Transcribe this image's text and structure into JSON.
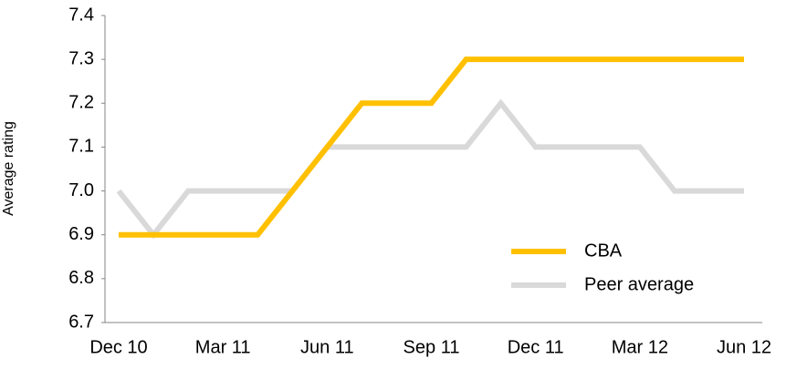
{
  "chart_data": {
    "type": "line",
    "ylabel": "Average rating",
    "categories": [
      "Dec 10",
      null,
      null,
      "Mar 11",
      null,
      null,
      "Jun 11",
      null,
      null,
      "Sep 11",
      null,
      null,
      "Dec 11",
      null,
      null,
      "Mar 12",
      null,
      null,
      "Jun 12"
    ],
    "series": [
      {
        "name": "Peer average",
        "color": "#d9d9d9",
        "values": [
          7.0,
          6.9,
          7.0,
          7.0,
          7.0,
          7.0,
          7.1,
          7.1,
          7.1,
          7.1,
          7.1,
          7.2,
          7.1,
          7.1,
          7.1,
          7.1,
          7.0,
          7.0,
          7.0
        ]
      },
      {
        "name": "CBA",
        "color": "#ffc000",
        "values": [
          6.9,
          6.9,
          6.9,
          6.9,
          6.9,
          7.0,
          7.1,
          7.2,
          7.2,
          7.2,
          7.3,
          7.3,
          7.3,
          7.3,
          7.3,
          7.3,
          7.3,
          7.3,
          7.3
        ]
      }
    ],
    "ylim": [
      6.7,
      7.4
    ],
    "yticks": [
      6.7,
      6.8,
      6.9,
      {
        "value": 7.0,
        "label": "7.0"
      },
      7.1,
      7.2,
      7.3,
      7.4
    ],
    "grid": false,
    "legend": "lower right"
  }
}
